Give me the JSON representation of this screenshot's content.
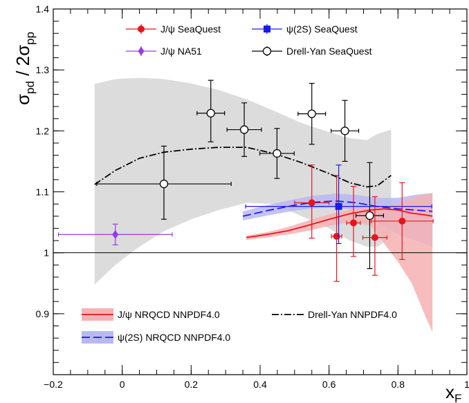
{
  "chart_data": {
    "type": "scatter",
    "title": "",
    "xlabel": "x",
    "xlabel_sub": "F",
    "ylabel_parts": [
      "σ",
      "pd",
      " / 2σ",
      "pp"
    ],
    "xlim": [
      -0.2,
      1.0
    ],
    "ylim": [
      0.8,
      1.4
    ],
    "xticks": [
      "−0.2",
      "0",
      "0.2",
      "0.4",
      "0.6",
      "0.8",
      "1"
    ],
    "xtick_values": [
      -0.2,
      0.0,
      0.2,
      0.4,
      0.6,
      0.8,
      1.0
    ],
    "yticks": [
      "0.9",
      "1",
      "1.1",
      "1.2",
      "1.3",
      "1.4"
    ],
    "ytick_values": [
      0.9,
      1.0,
      1.1,
      1.2,
      1.3,
      1.4
    ],
    "reference_line": 1.0,
    "colors": {
      "jpsi": "#e8141b",
      "psi2s": "#1a1aee",
      "na51": "#9a39e8",
      "dy": "#000000",
      "dy_band": "#d6d6d6",
      "jpsi_band": "#f6b1b3",
      "psi2s_band": "#b9b9f1"
    },
    "data_series": [
      {
        "name": "J/ψ SeaQuest",
        "marker": "circle-filled",
        "color": "#e8141b",
        "points": [
          {
            "x": 0.55,
            "y": 1.082,
            "xerr": 0.05,
            "yerr_up": 0.062,
            "yerr_dn": 0.058
          },
          {
            "x": 0.622,
            "y": 1.027,
            "xerr": 0.015,
            "yerr_up": 0.1,
            "yerr_dn": 0.074
          },
          {
            "x": 0.671,
            "y": 1.049,
            "xerr": 0.02,
            "yerr_up": 0.06,
            "yerr_dn": 0.055
          },
          {
            "x": 0.733,
            "y": 1.025,
            "xerr": 0.035,
            "yerr_up": 0.067,
            "yerr_dn": 0.062
          },
          {
            "x": 0.812,
            "y": 1.052,
            "xerr": 0.09,
            "yerr_up": 0.063,
            "yerr_dn": 0.063
          }
        ]
      },
      {
        "name": "ψ(2S) SeaQuest",
        "marker": "square-filled",
        "color": "#1a1aee",
        "points": [
          {
            "x": 0.628,
            "y": 1.076,
            "xerr": 0.27,
            "yerr_up": 0.068,
            "yerr_dn": 0.061
          }
        ]
      },
      {
        "name": "J/ψ NA51",
        "marker": "diamond-filled",
        "color": "#9a39e8",
        "points": [
          {
            "x": -0.02,
            "y": 1.03,
            "xerr": 0.165,
            "yerr_up": 0.017,
            "yerr_dn": 0.017
          }
        ]
      },
      {
        "name": "Drell-Yan SeaQuest",
        "marker": "circle-open",
        "color": "#000000",
        "points": [
          {
            "x": 0.121,
            "y": 1.113,
            "xerr": 0.195,
            "yerr_up": 0.062,
            "yerr_dn": 0.058
          },
          {
            "x": 0.257,
            "y": 1.229,
            "xerr": 0.04,
            "yerr_up": 0.054,
            "yerr_dn": 0.047
          },
          {
            "x": 0.354,
            "y": 1.202,
            "xerr": 0.05,
            "yerr_up": 0.044,
            "yerr_dn": 0.044
          },
          {
            "x": 0.449,
            "y": 1.163,
            "xerr": 0.05,
            "yerr_up": 0.041,
            "yerr_dn": 0.041
          },
          {
            "x": 0.55,
            "y": 1.228,
            "xerr": 0.04,
            "yerr_up": 0.05,
            "yerr_dn": 0.05
          },
          {
            "x": 0.646,
            "y": 1.2,
            "xerr": 0.04,
            "yerr_up": 0.05,
            "yerr_dn": 0.05
          },
          {
            "x": 0.718,
            "y": 1.061,
            "xerr": 0.04,
            "yerr_up": 0.087,
            "yerr_dn": 0.087
          }
        ]
      }
    ],
    "theory_curves": [
      {
        "name": "Drell-Yan NNPDF4.0",
        "style": "dash-dot",
        "color": "#000000",
        "band_color": "#d6d6d6",
        "x": [
          -0.08,
          -0.02,
          0.05,
          0.12,
          0.2,
          0.28,
          0.36,
          0.44,
          0.52,
          0.6,
          0.66,
          0.71,
          0.74,
          0.78
        ],
        "y": [
          1.112,
          1.135,
          1.155,
          1.165,
          1.17,
          1.173,
          1.173,
          1.163,
          1.148,
          1.13,
          1.115,
          1.108,
          1.11,
          1.127
        ],
        "upper": [
          1.277,
          1.285,
          1.287,
          1.285,
          1.278,
          1.267,
          1.252,
          1.233,
          1.213,
          1.198,
          1.188,
          1.185,
          1.195,
          1.202
        ],
        "lower": [
          0.948,
          0.98,
          1.01,
          1.035,
          1.055,
          1.07,
          1.082,
          1.08,
          1.06,
          1.04,
          1.02,
          1.01,
          1.01,
          1.025
        ]
      },
      {
        "name": "ψ(2S) NRQCD NNPDF4.0",
        "style": "dashed",
        "color": "#1a1aee",
        "band_color": "#b9b9f1",
        "x": [
          0.35,
          0.42,
          0.5,
          0.56,
          0.62,
          0.68,
          0.74,
          0.8,
          0.85,
          0.9
        ],
        "y": [
          1.06,
          1.069,
          1.078,
          1.083,
          1.085,
          1.082,
          1.076,
          1.072,
          1.07,
          1.068
        ],
        "upper": [
          1.068,
          1.078,
          1.088,
          1.094,
          1.097,
          1.095,
          1.09,
          1.09,
          1.095,
          1.098
        ],
        "lower": [
          1.053,
          1.061,
          1.069,
          1.073,
          1.074,
          1.07,
          1.05,
          1.03,
          1.02,
          1.01
        ]
      },
      {
        "name": "J/ψ NRQCD NNPDF4.0",
        "style": "solid",
        "color": "#e8141b",
        "band_color": "#f6b1b3",
        "x": [
          0.36,
          0.42,
          0.48,
          0.54,
          0.6,
          0.66,
          0.72,
          0.76,
          0.8,
          0.84,
          0.88,
          0.9
        ],
        "y": [
          1.025,
          1.03,
          1.036,
          1.045,
          1.055,
          1.064,
          1.07,
          1.072,
          1.07,
          1.065,
          1.062,
          1.06
        ],
        "upper": [
          1.028,
          1.034,
          1.042,
          1.053,
          1.063,
          1.071,
          1.076,
          1.078,
          1.08,
          1.09,
          1.096,
          1.097
        ],
        "lower": [
          1.021,
          1.025,
          1.03,
          1.036,
          1.044,
          1.05,
          1.045,
          1.015,
          0.985,
          0.95,
          0.895,
          0.87
        ]
      }
    ],
    "legend_top": [
      {
        "label": "J/ψ SeaQuest",
        "marker": "circle-filled",
        "color": "#e8141b"
      },
      {
        "label": "ψ(2S) SeaQuest",
        "marker": "square-filled",
        "color": "#1a1aee"
      },
      {
        "label": "J/ψ NA51",
        "marker": "diamond-filled",
        "color": "#9a39e8"
      },
      {
        "label": "Drell-Yan SeaQuest",
        "marker": "circle-open",
        "color": "#000000"
      }
    ],
    "legend_bottom": [
      {
        "label": "J/ψ NRQCD NNPDF4.0",
        "style": "solid",
        "color": "#e8141b",
        "band_color": "#f6b1b3"
      },
      {
        "label": "Drell-Yan NNPDF4.0",
        "style": "dash-dot",
        "color": "#000000",
        "band_color": ""
      },
      {
        "label": "ψ(2S) NRQCD NNPDF4.0",
        "style": "dashed",
        "color": "#1a1aee",
        "band_color": "#b9b9f1"
      }
    ]
  }
}
